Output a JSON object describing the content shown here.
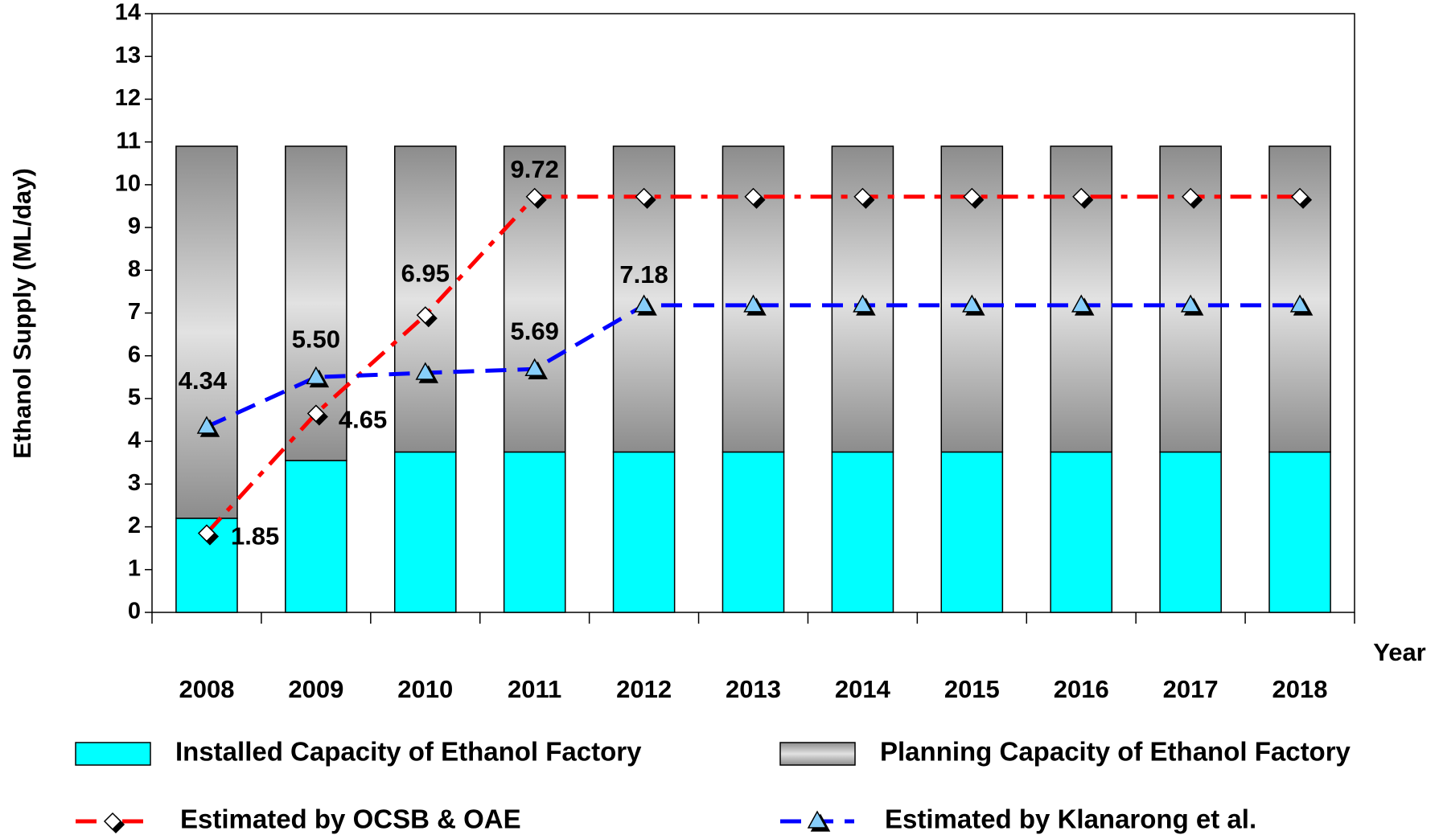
{
  "chart_data": {
    "type": "bar",
    "ylabel": "Ethanol Supply (ML/day)",
    "xlabel": "Year",
    "categories": [
      "2008",
      "2009",
      "2010",
      "2011",
      "2012",
      "2013",
      "2014",
      "2015",
      "2016",
      "2017",
      "2018"
    ],
    "series": [
      {
        "name": "Installed Capacity of Ethanol Factory",
        "kind": "bar",
        "color": "#00ffff",
        "values": [
          2.2,
          3.55,
          3.75,
          3.75,
          3.75,
          3.75,
          3.75,
          3.75,
          3.75,
          3.75,
          3.75
        ]
      },
      {
        "name": "Planning Capacity of Ethanol Factory",
        "kind": "bar",
        "color": "#b0b0b0",
        "values": [
          8.7,
          7.35,
          7.15,
          7.15,
          7.15,
          7.15,
          7.15,
          7.15,
          7.15,
          7.15,
          7.15
        ]
      },
      {
        "name": "Estimated by OCSB & OAE",
        "kind": "line",
        "color": "#ff0000",
        "values": [
          1.85,
          4.65,
          6.95,
          9.72,
          9.72,
          9.72,
          9.72,
          9.72,
          9.72,
          9.72,
          9.72
        ],
        "value_labels": [
          "1.85",
          "4.65",
          "6.95",
          "9.72",
          null,
          null,
          null,
          null,
          null,
          null,
          null
        ]
      },
      {
        "name": "Estimated by Klanarong et al.",
        "kind": "line",
        "color": "#0000ff",
        "values": [
          4.34,
          5.5,
          5.6,
          5.69,
          7.18,
          7.18,
          7.18,
          7.18,
          7.18,
          7.18,
          7.18
        ],
        "value_labels": [
          "4.34",
          "5.50",
          null,
          "5.69",
          "7.18",
          null,
          null,
          null,
          null,
          null,
          null
        ]
      }
    ],
    "ylim": [
      0,
      14
    ],
    "yticks": [
      0,
      1,
      2,
      3,
      4,
      5,
      6,
      7,
      8,
      9,
      10,
      11,
      12,
      13,
      14
    ]
  }
}
